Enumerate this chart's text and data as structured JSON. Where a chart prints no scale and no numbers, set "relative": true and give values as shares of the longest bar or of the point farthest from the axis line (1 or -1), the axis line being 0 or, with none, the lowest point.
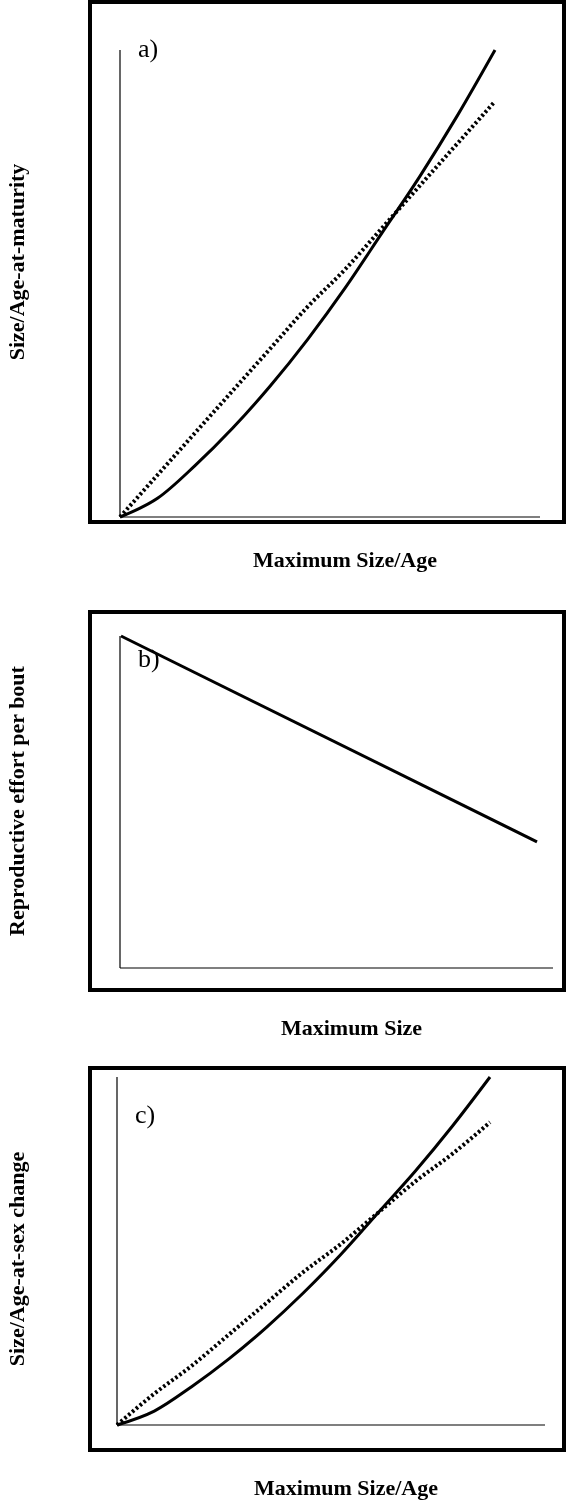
{
  "chart_data": [
    {
      "type": "line",
      "relative": true,
      "xlabel": "Maximum Size/Age",
      "ylabel": "Size/Age-at-maturity",
      "annotations": [
        "a)"
      ],
      "categories": [
        null,
        null,
        null,
        null,
        null,
        null,
        null,
        null,
        null,
        null,
        null
      ],
      "series": [
        {
          "color": "#000000",
          "line_style": "solid",
          "values": [
            0,
            0.04,
            0.11,
            0.19,
            0.28,
            0.38,
            0.49,
            0.61,
            0.73,
            0.86,
            1
          ]
        },
        {
          "color": "#000000",
          "line_style": "dotted",
          "values": [
            0,
            0.09,
            0.18,
            0.27,
            0.36,
            0.45,
            0.53,
            0.62,
            0.71,
            0.8,
            0.89
          ]
        }
      ]
    },
    {
      "type": "line",
      "relative": true,
      "xlabel": "Maximum Size",
      "ylabel": "Reproductive effort per bout",
      "annotations": [
        "b)"
      ],
      "categories": [
        null,
        null
      ],
      "series": [
        {
          "color": "#000000",
          "line_style": "solid",
          "values": [
            1,
            0.38
          ]
        }
      ]
    },
    {
      "type": "line",
      "relative": true,
      "xlabel": "Maximum Size/Age",
      "ylabel": "Size/Age-at-sex change",
      "annotations": [
        "c)"
      ],
      "categories": [
        null,
        null,
        null,
        null,
        null,
        null,
        null,
        null,
        null,
        null,
        null
      ],
      "series": [
        {
          "color": "#000000",
          "line_style": "solid",
          "values": [
            0,
            0.04,
            0.11,
            0.19,
            0.28,
            0.38,
            0.49,
            0.61,
            0.73,
            0.86,
            1
          ]
        },
        {
          "color": "#000000",
          "line_style": "dotted",
          "values": [
            0,
            0.09,
            0.17,
            0.26,
            0.35,
            0.44,
            0.52,
            0.61,
            0.7,
            0.78,
            0.87
          ]
        }
      ]
    }
  ]
}
